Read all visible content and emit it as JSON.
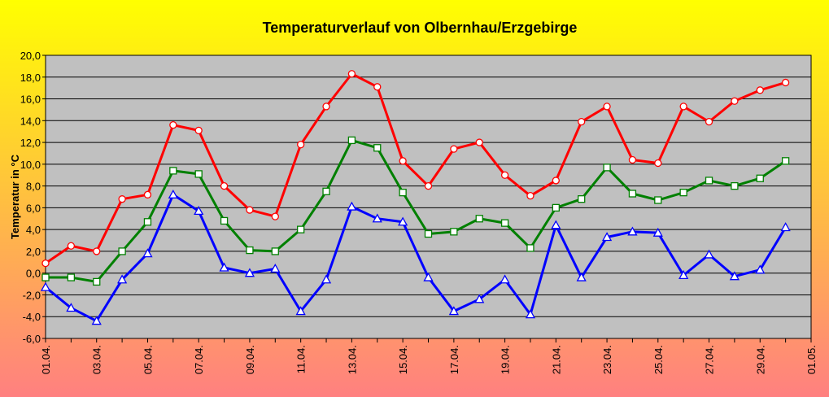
{
  "chart_data": {
    "type": "line",
    "title": "Temperaturverlauf von Olbernhau/Erzgebirge",
    "xlabel": "",
    "ylabel": "Temperatur in °C",
    "ylim": [
      -6,
      20
    ],
    "ytick_step": 2,
    "ytick_labels": [
      "-6,0",
      "-4,0",
      "-2,0",
      "0,0",
      "2,0",
      "4,0",
      "6,0",
      "8,0",
      "10,0",
      "12,0",
      "14,0",
      "16,0",
      "18,0",
      "20,0"
    ],
    "x_tick_labels": [
      "01.04.",
      "03.04.",
      "05.04.",
      "07.04.",
      "09.04.",
      "11.04.",
      "13.04.",
      "15.04.",
      "17.04.",
      "19.04.",
      "21.04.",
      "23.04.",
      "25.04.",
      "27.04.",
      "29.04.",
      "01.05."
    ],
    "x_tick_days": [
      1,
      3,
      5,
      7,
      9,
      11,
      13,
      15,
      17,
      19,
      21,
      23,
      25,
      27,
      29,
      31
    ],
    "x_range": [
      1,
      31
    ],
    "grid": true,
    "legend": "none",
    "background_gradient": [
      "#ffff00",
      "#ff8080"
    ],
    "plot_background": "#c0c0c0",
    "days": [
      1,
      2,
      3,
      4,
      5,
      6,
      7,
      8,
      9,
      10,
      11,
      12,
      13,
      14,
      15,
      16,
      17,
      18,
      19,
      20,
      21,
      22,
      23,
      24,
      25,
      26,
      27,
      28,
      29,
      30
    ],
    "series": [
      {
        "color": "#ff0000",
        "marker": "circle",
        "values": [
          0.9,
          2.5,
          2.0,
          6.8,
          7.2,
          13.6,
          13.1,
          8.0,
          5.8,
          5.2,
          11.8,
          15.3,
          18.3,
          17.1,
          10.3,
          8.0,
          11.4,
          12.0,
          9.0,
          7.1,
          8.5,
          13.9,
          15.3,
          10.4,
          10.1,
          15.3,
          13.9,
          15.8,
          16.8,
          17.5
        ]
      },
      {
        "color": "#008000",
        "marker": "square",
        "values": [
          -0.4,
          -0.4,
          -0.8,
          2.0,
          4.7,
          9.4,
          9.1,
          4.8,
          2.1,
          2.0,
          4.0,
          7.5,
          12.2,
          11.5,
          7.4,
          3.6,
          3.8,
          5.0,
          4.6,
          2.3,
          6.0,
          6.8,
          9.7,
          7.3,
          6.7,
          7.4,
          8.5,
          8.0,
          8.7,
          10.3
        ]
      },
      {
        "color": "#0000ff",
        "marker": "triangle",
        "values": [
          -1.3,
          -3.2,
          -4.4,
          -0.6,
          1.8,
          7.2,
          5.7,
          0.5,
          0.0,
          0.4,
          -3.5,
          -0.6,
          6.1,
          5.0,
          4.7,
          -0.4,
          -3.5,
          -2.4,
          -0.6,
          -3.8,
          4.4,
          -0.4,
          3.3,
          3.8,
          3.7,
          -0.2,
          1.7,
          -0.3,
          0.3,
          4.2
        ]
      }
    ]
  }
}
